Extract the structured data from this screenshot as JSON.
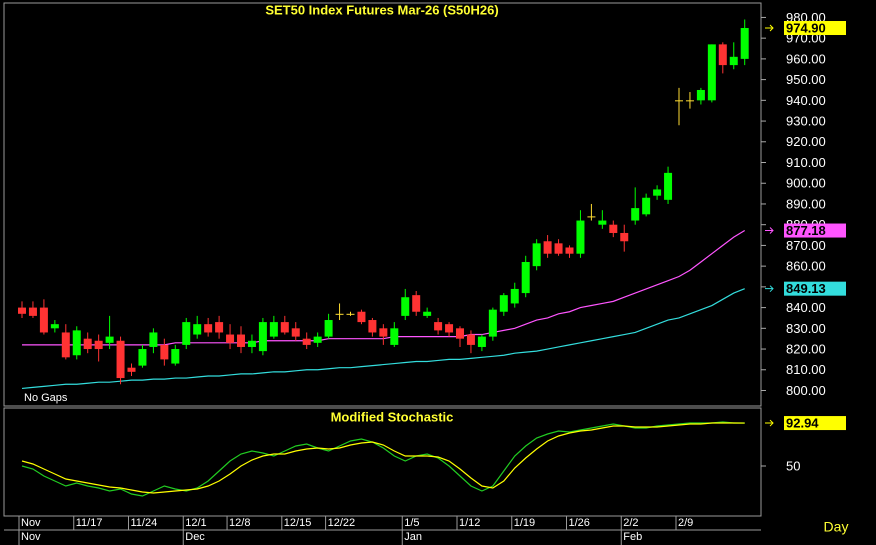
{
  "chart_data": [
    {
      "type": "candlestick",
      "title": "SET50  Index  Futures  Mar-26  (S50H26)",
      "note": "No  Gaps",
      "categories": [
        "Nov",
        null,
        null,
        null,
        null,
        "11/17",
        null,
        null,
        null,
        null,
        "11/24",
        null,
        null,
        null,
        null,
        "12/1",
        null,
        null,
        null,
        "12/8",
        null,
        null,
        null,
        null,
        "12/15",
        null,
        null,
        null,
        "12/22",
        null,
        null,
        null,
        null,
        null,
        null,
        "1/5",
        null,
        null,
        null,
        null,
        "1/12",
        null,
        null,
        null,
        null,
        "1/19",
        null,
        null,
        null,
        null,
        "1/26",
        null,
        null,
        null,
        null,
        "2/2",
        null,
        null,
        null,
        null,
        "2/9",
        null,
        null,
        null,
        null,
        null,
        null
      ],
      "month_labels": [
        "Nov",
        null,
        null,
        null,
        null,
        null,
        null,
        null,
        null,
        null,
        null,
        null,
        null,
        null,
        null,
        "Dec",
        null,
        null,
        null,
        null,
        null,
        null,
        null,
        null,
        null,
        null,
        null,
        null,
        null,
        null,
        null,
        null,
        null,
        null,
        null,
        "Jan",
        null,
        null,
        null,
        null,
        null,
        null,
        null,
        null,
        null,
        null,
        null,
        null,
        null,
        null,
        null,
        null,
        null,
        null,
        null,
        "Feb",
        null,
        null,
        null,
        null,
        null,
        null,
        null,
        null,
        null,
        null,
        null
      ],
      "open": [
        840,
        840,
        840,
        830,
        828,
        817,
        825,
        824,
        823,
        824,
        811,
        812,
        821,
        822,
        813,
        822,
        827,
        832,
        833,
        827,
        827,
        821,
        819,
        826,
        833,
        830,
        825,
        823,
        826,
        837,
        837,
        838,
        834,
        830,
        822,
        836,
        846,
        836,
        833,
        832,
        830,
        827,
        821,
        826,
        838,
        842,
        847,
        860,
        872,
        871,
        869,
        866,
        884,
        880,
        880,
        876,
        882,
        885,
        894,
        892,
        940,
        940,
        940,
        940,
        967,
        957,
        960
      ],
      "high": [
        843,
        843,
        844,
        834,
        832,
        831,
        828,
        827,
        836,
        826,
        813,
        822,
        830,
        825,
        822,
        835,
        836,
        835,
        836,
        832,
        831,
        827,
        835,
        836,
        836,
        833,
        828,
        828,
        837,
        842,
        838,
        839,
        835,
        832,
        833,
        849,
        848,
        840,
        835,
        833,
        831,
        829,
        827,
        840,
        847,
        852,
        865,
        873,
        875,
        873,
        870,
        887,
        890,
        887,
        882,
        880,
        898,
        895,
        899,
        908,
        946,
        944,
        946,
        967,
        968,
        968,
        979
      ],
      "low": [
        835,
        835,
        827,
        828,
        815,
        815,
        818,
        814,
        820,
        803,
        807,
        811,
        818,
        812,
        812,
        820,
        825,
        826,
        825,
        820,
        818,
        818,
        817,
        825,
        827,
        824,
        820,
        821,
        825,
        834,
        836,
        832,
        826,
        822,
        821,
        834,
        836,
        835,
        827,
        826,
        821,
        818,
        819,
        824,
        836,
        840,
        845,
        858,
        864,
        865,
        864,
        864,
        882,
        878,
        874,
        867,
        880,
        884,
        892,
        890,
        928,
        936,
        938,
        939,
        953,
        955,
        957
      ],
      "close": [
        837,
        836,
        828,
        832,
        816,
        829,
        820,
        820,
        826,
        806,
        809,
        820,
        828,
        815,
        820,
        833,
        832,
        828,
        828,
        823,
        821,
        824,
        833,
        833,
        828,
        826,
        822,
        826,
        834,
        837,
        837,
        833,
        828,
        826,
        830,
        845,
        838,
        838,
        829,
        828,
        825,
        822,
        826,
        839,
        846,
        849,
        862,
        871,
        866,
        866,
        866,
        882,
        884,
        882,
        876,
        872,
        888,
        893,
        897,
        905,
        940,
        940,
        945,
        967,
        957,
        961,
        974.9
      ],
      "last_close_label": "974.90",
      "up_color": "#00ff00",
      "down_color": "#ff3333",
      "overlays": [
        {
          "color": "#ff55ff",
          "last_label": "877.18",
          "values": [
            822,
            822,
            822,
            822,
            822,
            822,
            822,
            822,
            822,
            822,
            822,
            822,
            822,
            822,
            823,
            823,
            823,
            823,
            823,
            823,
            823,
            823,
            824,
            824,
            824,
            824,
            824,
            824,
            825,
            825,
            825,
            825,
            825,
            825,
            826,
            826,
            826,
            826,
            826,
            826,
            826,
            827,
            827,
            828,
            829,
            830,
            832,
            834,
            835,
            837,
            838,
            840,
            841,
            842,
            843,
            845,
            847,
            849,
            851,
            853,
            855,
            858,
            862,
            866,
            870,
            874,
            877.18
          ]
        },
        {
          "color": "#33dddd",
          "last_label": "849.13",
          "values": [
            801,
            801.5,
            802,
            802.5,
            803,
            803,
            803.5,
            804,
            804,
            804.5,
            805,
            805,
            805.5,
            805.5,
            806,
            806,
            806.5,
            807,
            807,
            807.5,
            808,
            808,
            808.5,
            809,
            809,
            809.5,
            810,
            810,
            810.5,
            811,
            811,
            811.5,
            812,
            812.5,
            813,
            813.5,
            814,
            814,
            814.5,
            815,
            815,
            815.5,
            816,
            816.5,
            817,
            818,
            818.5,
            819,
            820,
            821,
            822,
            823,
            824,
            825,
            826,
            827,
            828,
            830,
            832,
            834,
            835,
            837,
            839,
            841,
            844,
            847,
            849.13
          ]
        }
      ],
      "ylim": [
        793,
        986
      ],
      "yticks": [
        {
          "value": 800,
          "label": "800.00"
        },
        {
          "value": 810,
          "label": "810.00"
        },
        {
          "value": 820,
          "label": "820.00"
        },
        {
          "value": 830,
          "label": "830.00"
        },
        {
          "value": 840,
          "label": "840.00"
        },
        {
          "value": 850,
          "label": "850.00"
        },
        {
          "value": 860,
          "label": "860.00"
        },
        {
          "value": 870,
          "label": "870.00"
        },
        {
          "value": 880,
          "label": "880.00"
        },
        {
          "value": 890,
          "label": "890.00"
        },
        {
          "value": 900,
          "label": "900.00"
        },
        {
          "value": 910,
          "label": "910.00"
        },
        {
          "value": 920,
          "label": "920.00"
        },
        {
          "value": 930,
          "label": "930.00"
        },
        {
          "value": 940,
          "label": "940.00"
        },
        {
          "value": 950,
          "label": "950.00"
        },
        {
          "value": 960,
          "label": "960.00"
        },
        {
          "value": 970,
          "label": "970.00"
        },
        {
          "value": 980,
          "label": "980.00"
        }
      ]
    },
    {
      "type": "line",
      "title": "Modified  Stochastic",
      "xlabel": "Day",
      "series": [
        {
          "color": "#22cc22",
          "values": [
            50,
            47,
            40,
            35,
            30,
            33,
            30,
            28,
            25,
            27,
            22,
            20,
            25,
            30,
            27,
            25,
            28,
            35,
            45,
            55,
            62,
            65,
            63,
            60,
            65,
            70,
            72,
            68,
            65,
            70,
            75,
            77,
            74,
            68,
            60,
            55,
            60,
            62,
            58,
            50,
            40,
            30,
            25,
            30,
            45,
            60,
            70,
            78,
            82,
            85,
            84,
            86,
            88,
            90,
            92,
            90,
            88,
            88,
            90,
            91,
            92,
            93,
            93,
            93,
            94,
            93,
            93
          ]
        },
        {
          "color": "#ffff00",
          "values": [
            55,
            52,
            47,
            42,
            37,
            35,
            33,
            31,
            29,
            28,
            26,
            24,
            23,
            24,
            25,
            26,
            27,
            30,
            35,
            42,
            50,
            56,
            60,
            62,
            62,
            65,
            67,
            68,
            67,
            68,
            71,
            73,
            74,
            71,
            65,
            60,
            60,
            60,
            59,
            55,
            47,
            38,
            30,
            28,
            35,
            48,
            58,
            67,
            75,
            80,
            83,
            85,
            86,
            88,
            90,
            90,
            89,
            89,
            89,
            90,
            91,
            92,
            92,
            93,
            93,
            93,
            92.94
          ]
        }
      ],
      "ylim": [
        0,
        100
      ],
      "yticks": [
        50
      ]
    }
  ]
}
